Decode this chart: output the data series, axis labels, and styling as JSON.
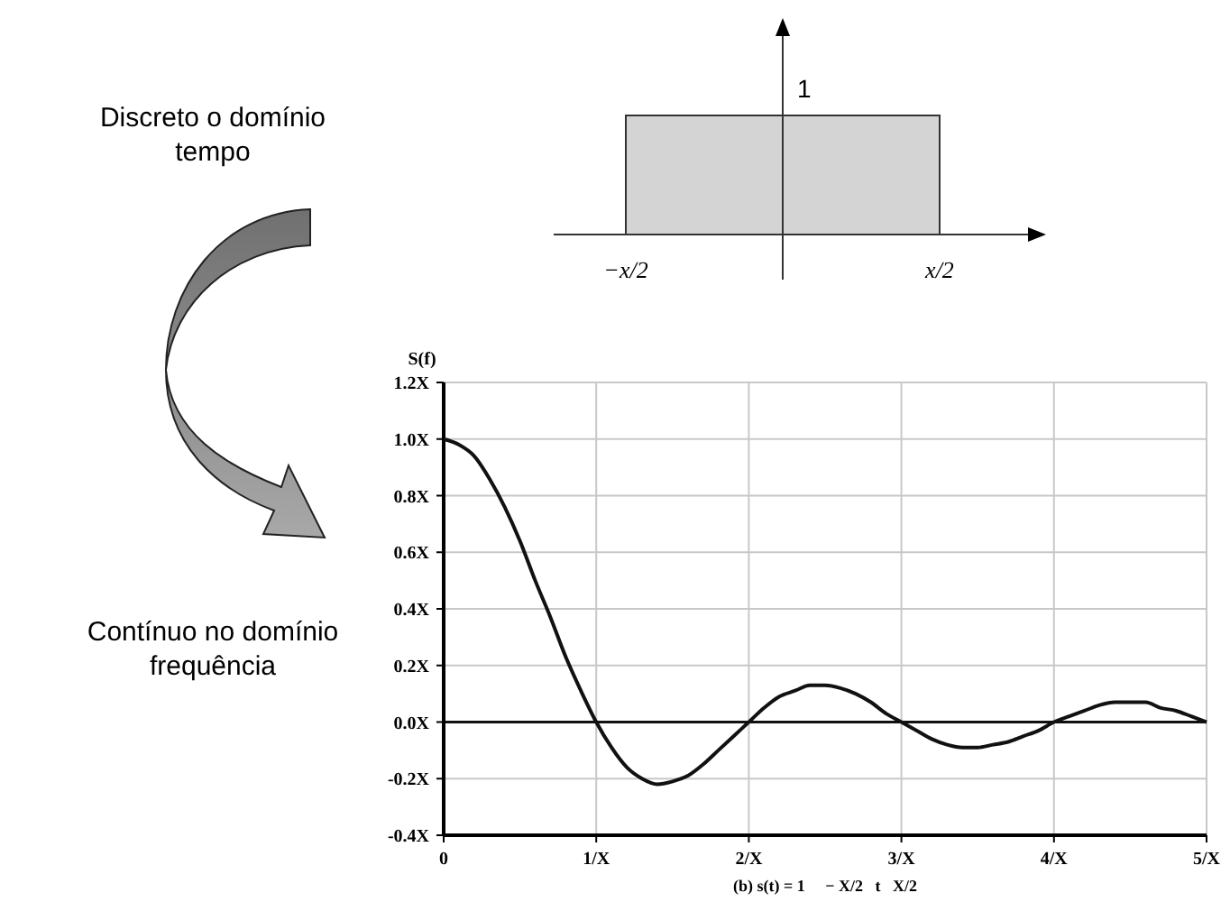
{
  "chart_data": [
    {
      "type": "other",
      "annotations": [
        "1",
        "−x/2",
        "x/2",
        "Discreto o domínio tempo"
      ]
    },
    {
      "type": "line",
      "x": [
        0,
        0.1,
        0.2,
        0.3,
        0.4,
        0.5,
        0.6,
        0.7,
        0.8,
        0.9,
        1,
        1.1,
        1.2,
        1.3,
        1.4,
        1.5,
        1.6,
        1.7,
        1.8,
        1.9,
        2,
        2.1,
        2.2,
        2.3,
        2.4,
        2.5,
        2.6,
        2.7,
        2.8,
        2.9,
        3,
        3.1,
        3.2,
        3.3,
        3.4,
        3.5,
        3.6,
        3.7,
        3.8,
        3.9,
        4,
        4.1,
        4.2,
        4.3,
        4.4,
        4.5,
        4.6,
        4.7,
        4.8,
        4.9,
        5
      ],
      "values": [
        1,
        0.98,
        0.94,
        0.86,
        0.76,
        0.64,
        0.5,
        0.37,
        0.23,
        0.11,
        0,
        -0.09,
        -0.16,
        -0.2,
        -0.22,
        -0.21,
        -0.19,
        -0.15,
        -0.1,
        -0.05,
        0,
        0.05,
        0.09,
        0.11,
        0.13,
        0.13,
        0.12,
        0.1,
        0.07,
        0.03,
        0,
        -0.03,
        -0.06,
        -0.08,
        -0.09,
        -0.09,
        -0.08,
        -0.07,
        -0.05,
        -0.03,
        0,
        0.02,
        0.04,
        0.06,
        0.07,
        0.07,
        0.07,
        0.05,
        0.04,
        0.02,
        0
      ],
      "color": "#111111",
      "ylabel": "S(f)",
      "xlabel": "(b) s(t) = 1     − X/2   t   X/2",
      "xlim": [
        0,
        5
      ],
      "xticks": [
        0,
        {
          "value": 1,
          "label": "1/X"
        },
        {
          "value": 2,
          "label": "2/X"
        },
        {
          "value": 3,
          "label": "3/X"
        },
        {
          "value": 4,
          "label": "4/X"
        },
        {
          "value": 5,
          "label": "5/X"
        }
      ],
      "ylim": [
        -0.4,
        1.2
      ],
      "yticks": [
        {
          "value": -0.4,
          "label": "-0.4X"
        },
        {
          "value": -0.2,
          "label": "-0.2X"
        },
        {
          "value": 0,
          "label": "0.0X"
        },
        {
          "value": 0.2,
          "label": "0.2X"
        },
        {
          "value": 0.4,
          "label": "0.4X"
        },
        {
          "value": 0.6,
          "label": "0.6X"
        },
        {
          "value": 0.8,
          "label": "0.8X"
        },
        {
          "value": 1,
          "label": "1.0X"
        },
        {
          "value": 1.2,
          "label": "1.2X"
        }
      ],
      "grid": true,
      "ref_lines": [
        {
          "axis": "y",
          "value": 0,
          "color": "#111111"
        }
      ],
      "annotations": [
        "Contínuo no domínio frequência"
      ]
    }
  ]
}
